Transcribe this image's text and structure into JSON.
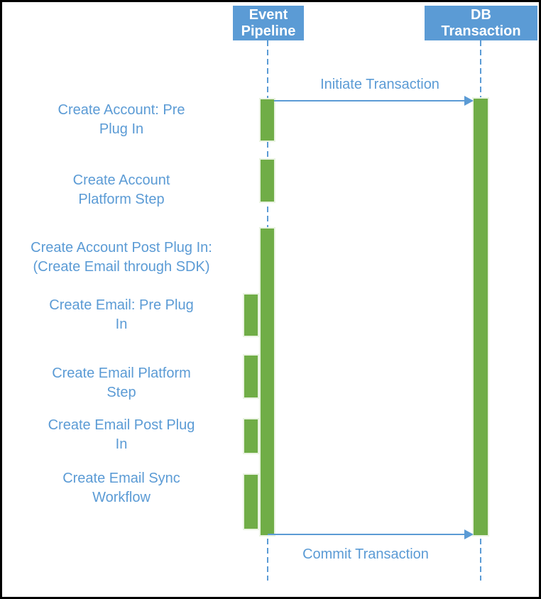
{
  "lifelines": [
    {
      "name": "Event Pipeline",
      "line1": "Event",
      "line2": "Pipeline"
    },
    {
      "name": "DB Transaction",
      "line1": "DB",
      "line2": "Transaction"
    }
  ],
  "messages": [
    {
      "label": "Initiate Transaction",
      "from": "Event Pipeline",
      "to": "DB Transaction"
    },
    {
      "label": "Commit Transaction",
      "from": "Event Pipeline",
      "to": "DB Transaction"
    }
  ],
  "steps": [
    {
      "line1": "Create Account: Pre",
      "line2": "Plug In"
    },
    {
      "line1": "Create Account",
      "line2": "Platform Step"
    },
    {
      "line1": "Create Account Post Plug In:",
      "line2": "(Create Email through SDK)"
    },
    {
      "line1": "Create Email: Pre Plug",
      "line2": "In"
    },
    {
      "line1": "Create Email Platform",
      "line2": "Step"
    },
    {
      "line1": "Create Email Post Plug",
      "line2": "In"
    },
    {
      "line1": "Create Email Sync",
      "line2": "Workflow"
    }
  ],
  "colors": {
    "accent_blue": "#5B9BD5",
    "bar_green": "#70AD47"
  }
}
